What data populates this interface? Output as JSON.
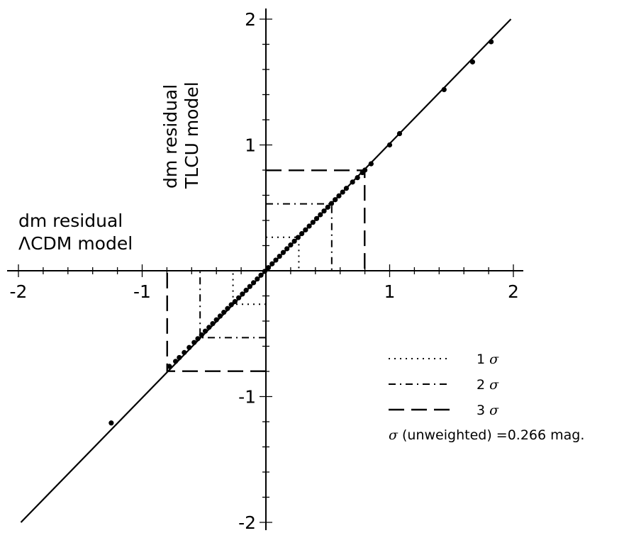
{
  "chart_data": {
    "type": "scatter",
    "xlabel_lines": [
      "dm residual",
      "ΛCDM model"
    ],
    "ylabel_lines": [
      "dm residual",
      "TLCU model"
    ],
    "xlim": [
      -2.05,
      2.05
    ],
    "ylim": [
      -2.05,
      2.05
    ],
    "x_ticks": [
      -2,
      -1,
      1,
      2
    ],
    "x_tick_labels": [
      "-2",
      "-1",
      "1",
      "2"
    ],
    "y_ticks": [
      -2,
      -1,
      1,
      2
    ],
    "y_tick_labels": [
      "-2",
      "-1",
      "1",
      "2"
    ],
    "grid": false,
    "legend_position": "bottom-right",
    "fit_line": {
      "x": [
        -1.98,
        1.98
      ],
      "y": [
        -2.0,
        2.0
      ]
    },
    "sigma_boxes": [
      {
        "label": "1",
        "sigma_symbol": "σ",
        "style": "dotted",
        "value": 0.266
      },
      {
        "label": "2",
        "sigma_symbol": "σ",
        "style": "dash-dot",
        "value": 0.532
      },
      {
        "label": "3",
        "sigma_symbol": "σ",
        "style": "dashed",
        "value": 0.798
      }
    ],
    "annotation": {
      "symbol": "σ",
      "text": " (unweighted) =0.266 mag."
    },
    "series": [
      {
        "x": [
          -1.25,
          -0.78,
          -0.73,
          -0.7,
          -0.66,
          -0.62,
          -0.58,
          -0.55,
          -0.52,
          -0.49,
          -0.46,
          -0.43,
          -0.4,
          -0.37,
          -0.34,
          -0.31,
          -0.28,
          -0.25,
          -0.22,
          -0.19,
          -0.16,
          -0.13,
          -0.1,
          -0.07,
          -0.04,
          -0.01,
          0.02,
          0.05,
          0.08,
          0.11,
          0.14,
          0.17,
          0.2,
          0.23,
          0.26,
          0.29,
          0.32,
          0.35,
          0.38,
          0.41,
          0.44,
          0.47,
          0.5,
          0.53,
          0.56,
          0.59,
          0.62,
          0.65,
          0.7,
          0.74,
          0.78,
          0.8,
          0.85,
          1.0,
          1.08,
          1.44,
          1.67,
          1.82
        ],
        "y": [
          -1.21,
          -0.76,
          -0.72,
          -0.69,
          -0.65,
          -0.61,
          -0.57,
          -0.54,
          -0.51,
          -0.48,
          -0.45,
          -0.42,
          -0.39,
          -0.36,
          -0.33,
          -0.3,
          -0.27,
          -0.245,
          -0.215,
          -0.185,
          -0.155,
          -0.125,
          -0.095,
          -0.065,
          -0.035,
          -0.005,
          0.025,
          0.055,
          0.085,
          0.115,
          0.145,
          0.175,
          0.205,
          0.235,
          0.265,
          0.295,
          0.325,
          0.355,
          0.385,
          0.415,
          0.445,
          0.475,
          0.505,
          0.535,
          0.565,
          0.595,
          0.625,
          0.655,
          0.705,
          0.74,
          0.78,
          0.8,
          0.85,
          1.0,
          1.09,
          1.44,
          1.66,
          1.82
        ]
      }
    ]
  }
}
